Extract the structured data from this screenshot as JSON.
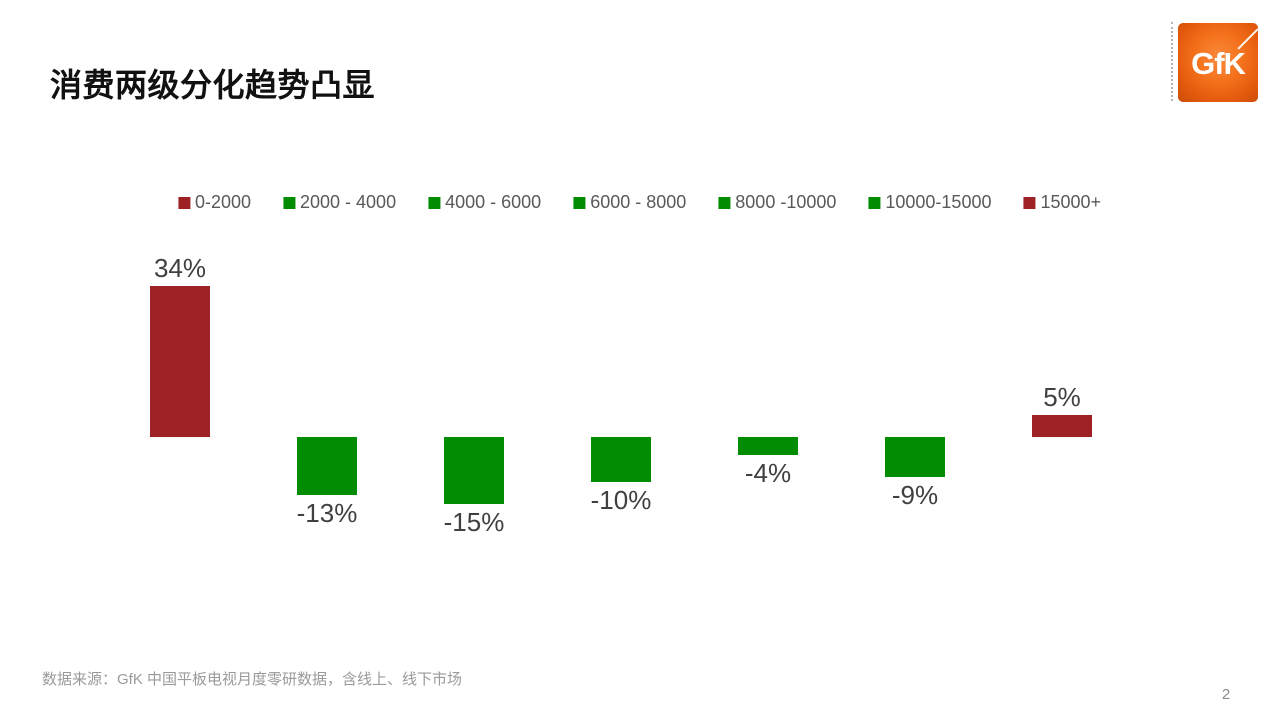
{
  "header": {
    "title": "消费两级分化趋势凸显",
    "logo_text": "GfK"
  },
  "colors": {
    "dark_red": "#9E2125",
    "green": "#018C01",
    "title_text": "#111111",
    "data_label_text": "#404040",
    "legend_text": "#595959",
    "footer_text": "#9A9A9A",
    "logo_orange_center": "#F98A3C",
    "logo_orange_edge": "#C94C09"
  },
  "chart_data": {
    "type": "bar",
    "title": "",
    "categories": [
      "0-2000",
      "2000 - 4000",
      "4000 - 6000",
      "6000 - 8000",
      "8000 -10000",
      "10000-15000",
      "15000+"
    ],
    "values": [
      34,
      -13,
      -15,
      -10,
      -4,
      -9,
      5
    ],
    "data_labels": [
      "34%",
      "-13%",
      "-15%",
      "-10%",
      "-4%",
      "-9%",
      "5%"
    ],
    "bar_colors": [
      "#9E2125",
      "#018C01",
      "#018C01",
      "#018C01",
      "#018C01",
      "#018C01",
      "#9E2125"
    ],
    "unit": "%",
    "ylim": [
      -20,
      40
    ],
    "baseline": 0,
    "gridlines": false,
    "axes_visible": false,
    "legend_position": "top",
    "data_label_position": "outside-end"
  },
  "footer": {
    "source": "数据来源：GfK 中国平板电视月度零研数据，含线上、线下市场",
    "page_number": "2"
  }
}
